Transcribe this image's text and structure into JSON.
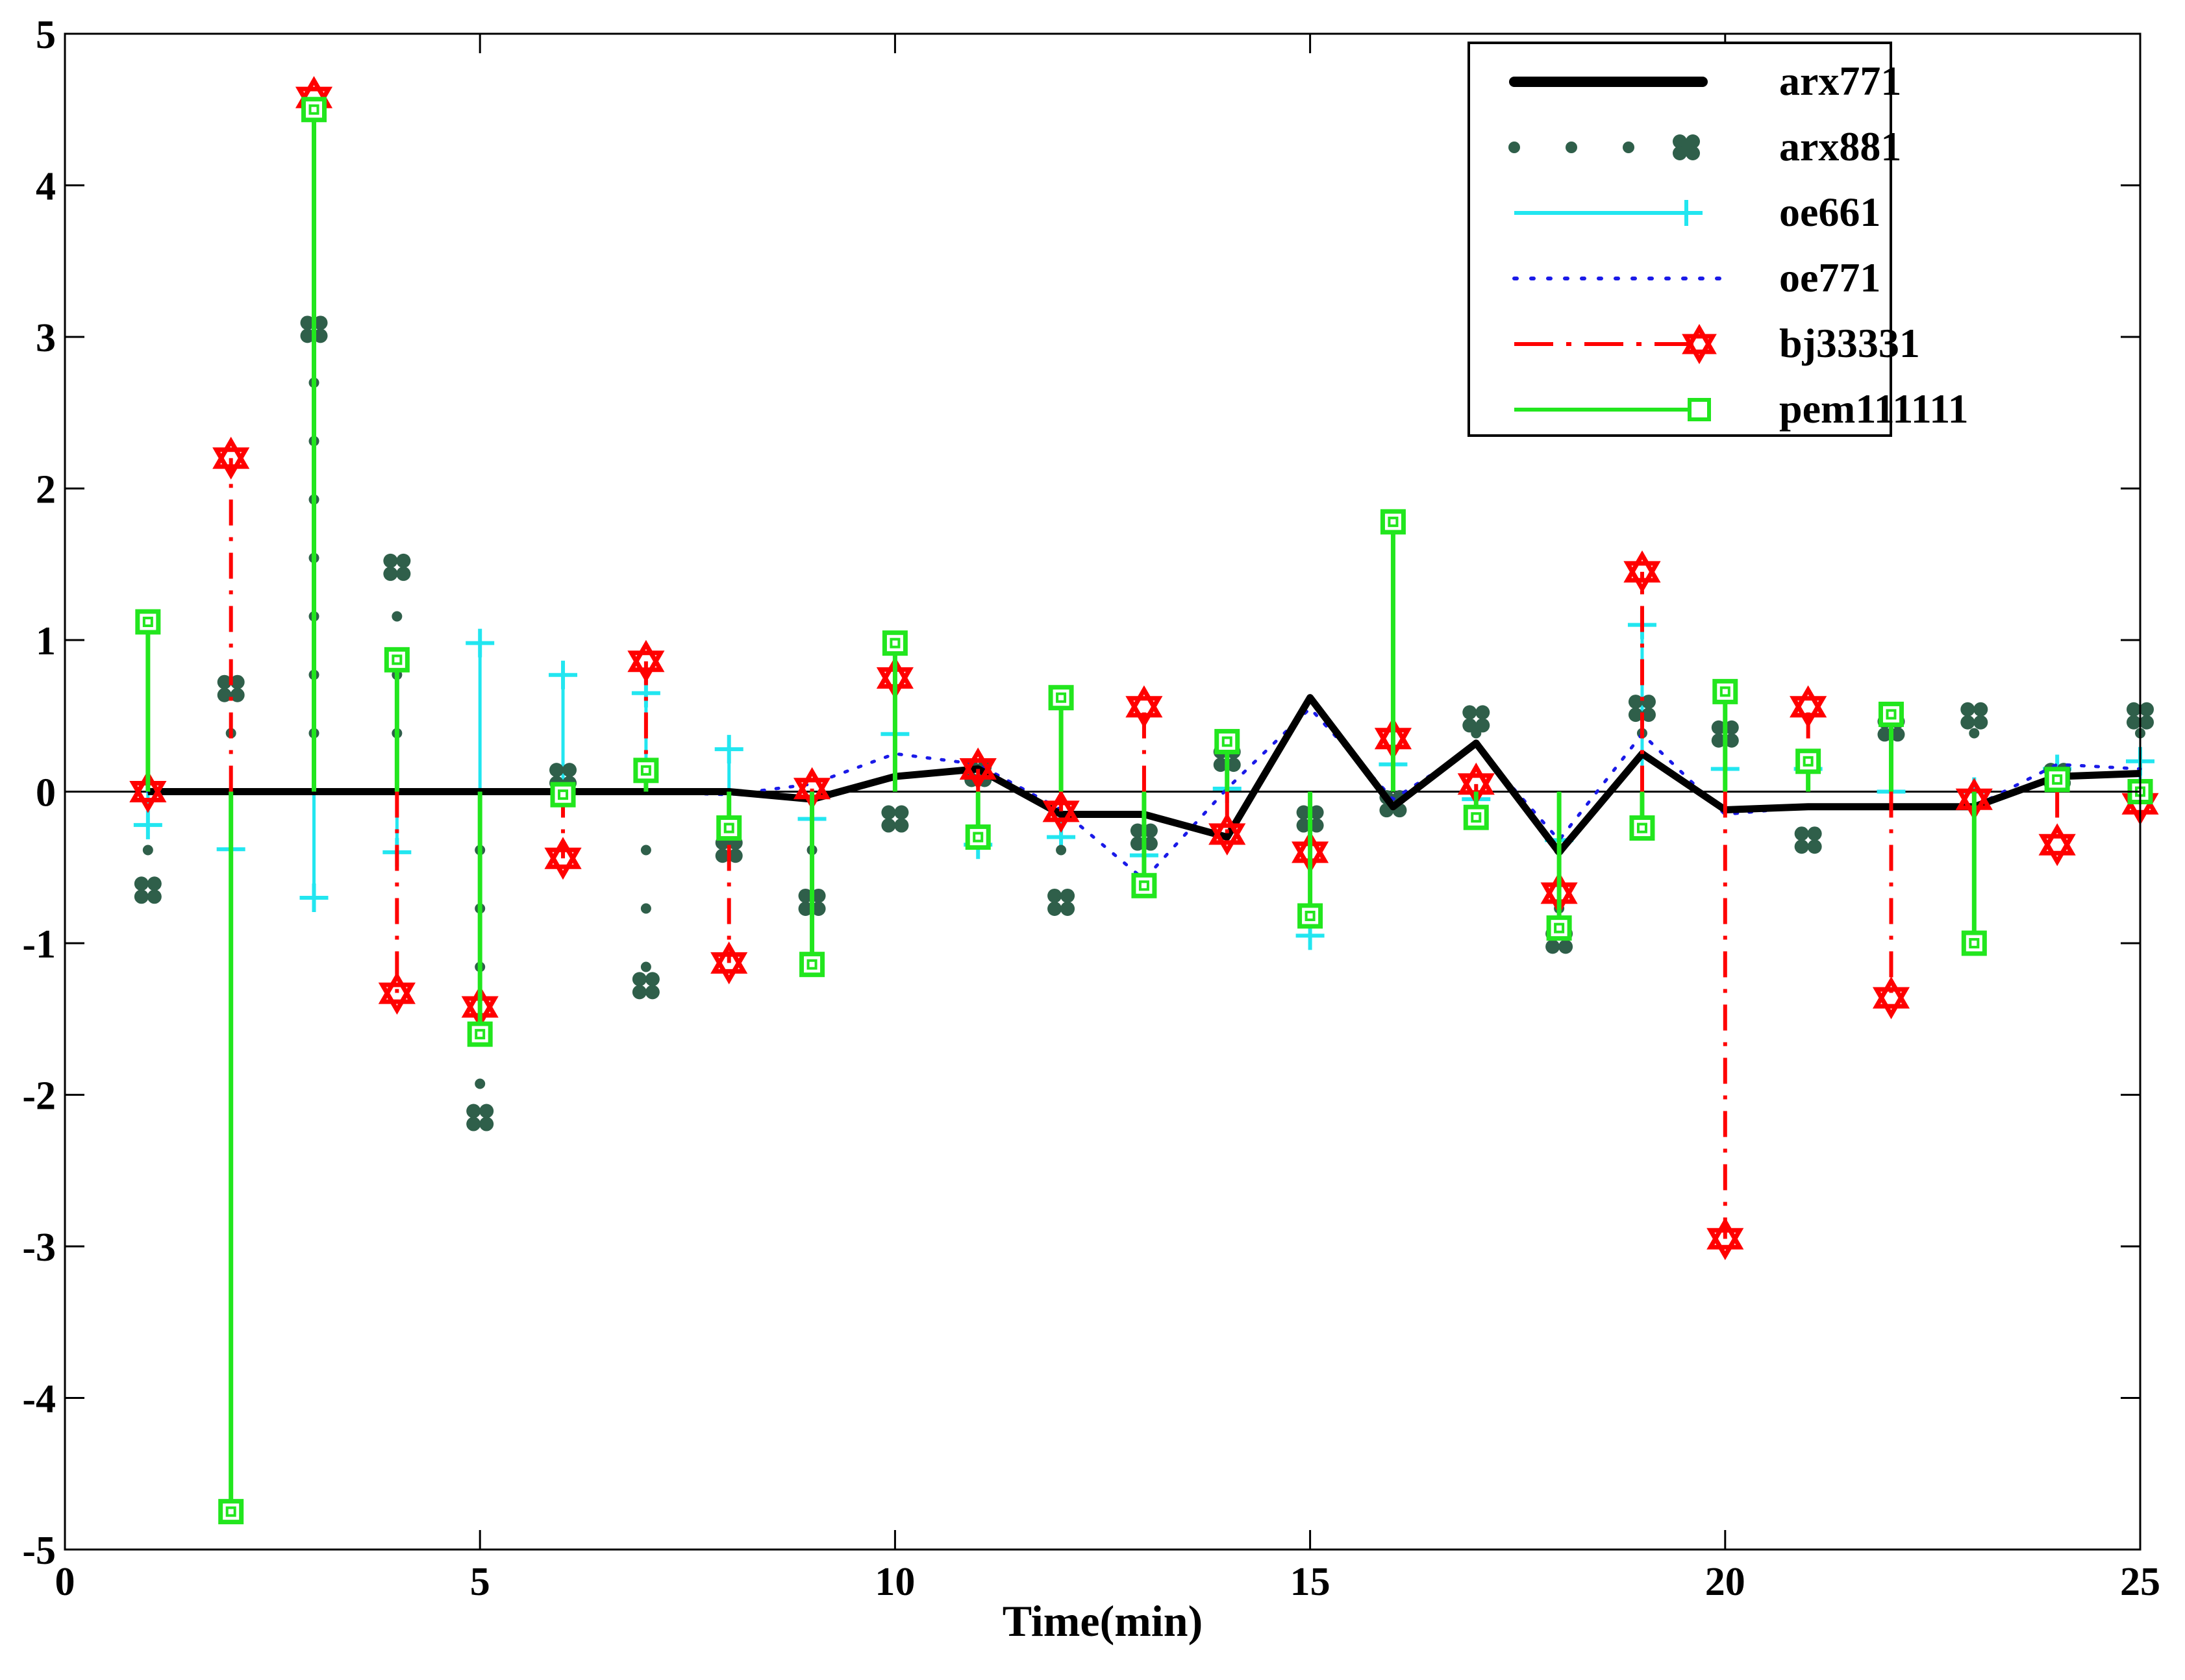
{
  "chart_data": {
    "type": "line",
    "title": "",
    "xlabel": "Time(min)",
    "ylabel": "",
    "xlim": [
      0,
      25
    ],
    "ylim": [
      -5,
      5
    ],
    "xticks": [
      0,
      5,
      10,
      15,
      20,
      25
    ],
    "yticks": [
      -5,
      -4,
      -3,
      -2,
      -1,
      0,
      1,
      2,
      3,
      4,
      5
    ],
    "xtick_labels": [
      "0",
      "5",
      "10",
      "15",
      "20",
      "25"
    ],
    "ytick_labels": [
      "-5",
      "-4",
      "-3",
      "-2",
      "-1",
      "0",
      "1",
      "2",
      "3",
      "4",
      "5"
    ],
    "legend_position": "top-right",
    "grid": false,
    "x": [
      1,
      2,
      3,
      4,
      5,
      6,
      7,
      8,
      9,
      10,
      11,
      12,
      13,
      14,
      15,
      16,
      17,
      18,
      19,
      20,
      21,
      22,
      23,
      24,
      25
    ],
    "series": [
      {
        "name": "arx771",
        "style": "line",
        "color": "#000000",
        "values": [
          0,
          0,
          0,
          0,
          0,
          0,
          0,
          0,
          -0.05,
          0.1,
          0.15,
          -0.15,
          -0.15,
          -0.3,
          0.62,
          -0.1,
          0.32,
          -0.4,
          0.25,
          -0.12,
          -0.1,
          -0.1,
          -0.1,
          0.1,
          0.12
        ]
      },
      {
        "name": "arx881",
        "style": "dotted-stem",
        "color": "#2f5f4a",
        "values": [
          -0.65,
          0.68,
          3.05,
          1.48,
          -2.15,
          0.1,
          -1.28,
          -0.38,
          -0.73,
          -0.18,
          0.12,
          -0.73,
          -0.3,
          0.22,
          -0.18,
          -0.08,
          0.48,
          -0.98,
          0.55,
          0.38,
          -0.32,
          0.42,
          0.5,
          0.1,
          0.5
        ]
      },
      {
        "name": "oe661",
        "style": "stem",
        "color": "#22e6f0",
        "values": [
          -0.22,
          -0.38,
          -0.7,
          -0.4,
          0.98,
          0.77,
          0.65,
          0.28,
          -0.18,
          0.38,
          -0.35,
          -0.3,
          -0.42,
          0.02,
          -0.95,
          0.18,
          -0.05,
          -0.32,
          1.1,
          0.15,
          0.15,
          0.0,
          0.0,
          0.15,
          0.2
        ]
      },
      {
        "name": "oe771",
        "style": "dotted-line",
        "color": "#1a1ae8",
        "values": [
          0,
          0,
          0,
          0,
          0,
          0,
          0,
          -0.02,
          0.05,
          0.25,
          0.18,
          -0.12,
          -0.58,
          0.02,
          0.55,
          -0.05,
          0.3,
          -0.32,
          0.38,
          -0.15,
          -0.1,
          -0.1,
          -0.1,
          0.18,
          0.15
        ]
      },
      {
        "name": "bj33331",
        "style": "dashdot-stem",
        "color": "#ff0000",
        "values": [
          0,
          2.2,
          4.58,
          -1.33,
          -1.42,
          -0.44,
          0.86,
          -1.13,
          0.02,
          0.75,
          0.15,
          -0.13,
          0.56,
          -0.28,
          -0.4,
          0.35,
          0.05,
          -0.67,
          1.45,
          -2.95,
          0.56,
          -1.36,
          -0.05,
          -0.35,
          -0.08
        ]
      },
      {
        "name": "pem111111",
        "style": "stem",
        "color": "#22e61e",
        "values": [
          1.12,
          -4.75,
          4.5,
          0.87,
          -1.6,
          -0.02,
          0.14,
          -0.24,
          -1.14,
          0.98,
          -0.3,
          0.62,
          -0.62,
          0.33,
          -0.82,
          1.78,
          -0.17,
          -0.9,
          -0.24,
          0.66,
          0.2,
          0.51,
          -1.0,
          0.08,
          0.0
        ]
      }
    ]
  }
}
